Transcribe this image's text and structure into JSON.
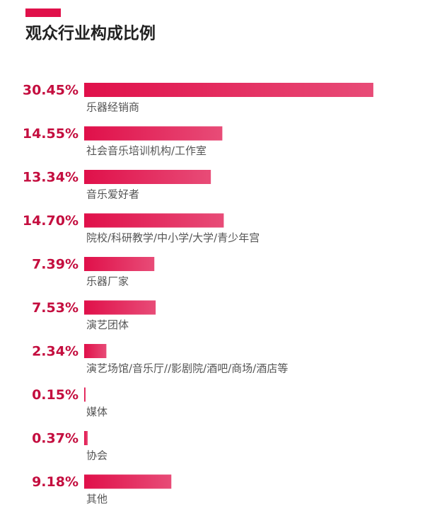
{
  "chart_data": {
    "type": "bar",
    "orientation": "horizontal",
    "title": "观众行业构成比例",
    "categories": [
      "乐器经销商",
      "社会音乐培训机构/工作室",
      "音乐爱好者",
      "院校/科研教学/中小学/大学/青少年宫",
      "乐器厂家",
      "演艺团体",
      "演艺场馆/音乐厅//影剧院/酒吧/商场/酒店等",
      "媒体",
      "协会",
      "其他"
    ],
    "values": [
      30.45,
      14.55,
      13.34,
      14.7,
      7.39,
      7.53,
      2.34,
      0.15,
      0.37,
      9.18
    ],
    "value_labels": [
      "30.45%",
      "14.55%",
      "13.34%",
      "14.70%",
      "7.39%",
      "7.53%",
      "2.34%",
      "0.15%",
      "0.37%",
      "9.18%"
    ],
    "color": "#e0104a",
    "label_color": "#c40e3f"
  }
}
